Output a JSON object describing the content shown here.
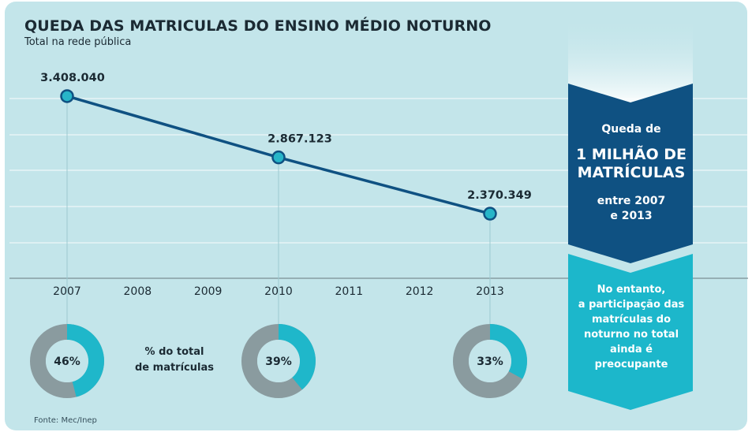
{
  "header": {
    "title": "QUEDA DAS MATRICULAS DO ENSINO MÉDIO NOTURNO",
    "subtitle": "Total na rede pública"
  },
  "chart_data": {
    "type": "line",
    "categories": [
      "2007",
      "2008",
      "2009",
      "2010",
      "2011",
      "2012",
      "2013"
    ],
    "series": [
      {
        "points": [
          {
            "x": "2007",
            "value": 3408040,
            "label": "3.408.040"
          },
          {
            "x": "2010",
            "value": 2867123,
            "label": "2.867.123"
          },
          {
            "x": "2013",
            "value": 2370349,
            "label": "2.370.349"
          }
        ]
      }
    ],
    "ylim": [
      1800000,
      3700000
    ],
    "grid": true,
    "donuts": [
      {
        "x": "2007",
        "percent": 46,
        "label": "46%"
      },
      {
        "x": "2010",
        "percent": 39,
        "label": "39%"
      },
      {
        "x": "2013",
        "percent": 33,
        "label": "33%"
      }
    ],
    "donut_note": [
      "% do total",
      "de matrículas"
    ]
  },
  "callout": {
    "line1": "Queda de",
    "headline": [
      "1 MILHÃO DE",
      "MATRÍCULAS"
    ],
    "period": [
      "entre 2007",
      "e 2013"
    ],
    "note": [
      "No entanto,",
      "a participação das",
      "matrículas do",
      "noturno no total",
      "ainda é",
      "preocupante"
    ]
  },
  "source": "Fonte: Mec/Inep",
  "colors": {
    "background": "#c3e5ea",
    "line": "#0f5182",
    "marker": "#27b5c8",
    "donut_fill": "#1fb7ca",
    "donut_rest": "#8a9b9f",
    "callout_top": "#0f5182",
    "callout_bottom": "#1cb7cb",
    "text": "#1b2a33"
  }
}
